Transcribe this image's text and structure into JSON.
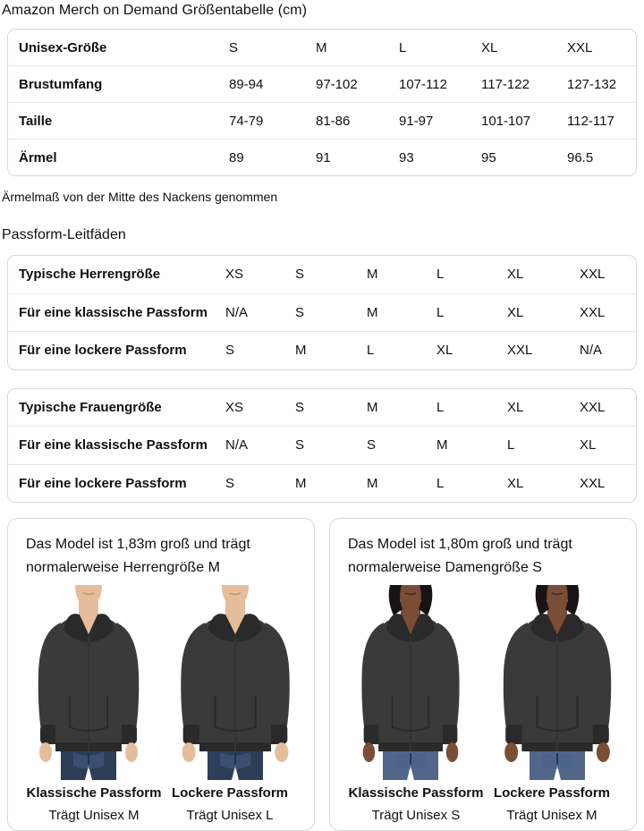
{
  "page": {
    "title": "Amazon Merch on Demand Größentabelle (cm)",
    "note": "Ärmelmaß von der Mitte des Nackens genommen",
    "section_title": "Passform-Leitfäden"
  },
  "unisex_table": {
    "header": {
      "label": "Unisex-Größe",
      "sizes": [
        "S",
        "M",
        "L",
        "XL",
        "XXL"
      ]
    },
    "rows": [
      {
        "label": "Brustumfang",
        "values": [
          "89-94",
          "97-102",
          "107-112",
          "117-122",
          "127-132"
        ]
      },
      {
        "label": "Taille",
        "values": [
          "74-79",
          "81-86",
          "91-97",
          "101-107",
          "112-117"
        ]
      },
      {
        "label": "Ärmel",
        "values": [
          "89",
          "91",
          "93",
          "95",
          "96.5"
        ]
      }
    ]
  },
  "fit_tables": {
    "men": {
      "rows": [
        {
          "label": "Typische Herrengröße",
          "values": [
            "XS",
            "S",
            "M",
            "L",
            "XL",
            "XXL"
          ]
        },
        {
          "label": "Für eine klassische Passform",
          "values": [
            "N/A",
            "S",
            "M",
            "L",
            "XL",
            "XXL"
          ]
        },
        {
          "label": "Für eine lockere Passform",
          "values": [
            "S",
            "M",
            "L",
            "XL",
            "XXL",
            "N/A"
          ]
        }
      ]
    },
    "women": {
      "rows": [
        {
          "label": "Typische Frauengröße",
          "values": [
            "XS",
            "S",
            "M",
            "L",
            "XL",
            "XXL"
          ]
        },
        {
          "label": "Für eine klassische Passform",
          "values": [
            "N/A",
            "S",
            "S",
            "M",
            "L",
            "XL"
          ]
        },
        {
          "label": "Für eine lockere Passform",
          "values": [
            "S",
            "M",
            "M",
            "L",
            "XL",
            "XXL"
          ]
        }
      ]
    }
  },
  "model_cards": {
    "men": {
      "description": "Das Model ist 1,83m groß und trägt normalerweise Herrengröße M",
      "figures": [
        {
          "fit_label": "Klassische Passform",
          "size_label": "Trägt Unisex M"
        },
        {
          "fit_label": "Lockere Passform",
          "size_label": "Trägt Unisex L"
        }
      ]
    },
    "women": {
      "description": "Das Model ist 1,80m groß und trägt normalerweise Damengröße S",
      "figures": [
        {
          "fit_label": "Klassische Passform",
          "size_label": "Trägt Unisex S"
        },
        {
          "fit_label": "Lockere Passform",
          "size_label": "Trägt Unisex M"
        }
      ]
    }
  },
  "colors": {
    "text": "#0f1111",
    "table_border": "#d5d9d9",
    "row_divider": "#e7e7e7",
    "hoodie": "#3a3a3a",
    "hoodie_shadow": "#2a2a2a",
    "zipper": "#161616",
    "jeans_men": "#2c3e58",
    "jeans_women": "#51668a",
    "jeans_wash": "#49608a",
    "skin_light": "#e6bd9b",
    "skin_dark": "#7a4d36",
    "hair": "#181314"
  }
}
